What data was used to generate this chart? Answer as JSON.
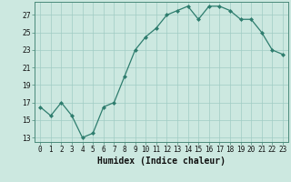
{
  "xlabel": "Humidex (Indice chaleur)",
  "x": [
    0,
    1,
    2,
    3,
    4,
    5,
    6,
    7,
    8,
    9,
    10,
    11,
    12,
    13,
    14,
    15,
    16,
    17,
    18,
    19,
    20,
    21,
    22,
    23
  ],
  "y": [
    16.5,
    15.5,
    17.0,
    15.5,
    13.0,
    13.5,
    16.5,
    17.0,
    20.0,
    23.0,
    24.5,
    25.5,
    27.0,
    27.5,
    28.0,
    26.5,
    28.0,
    28.0,
    27.5,
    26.5,
    26.5,
    25.0,
    23.0,
    22.5
  ],
  "ylim_min": 12.5,
  "ylim_max": 28.5,
  "yticks": [
    13,
    15,
    17,
    19,
    21,
    23,
    25,
    27
  ],
  "xticks": [
    0,
    1,
    2,
    3,
    4,
    5,
    6,
    7,
    8,
    9,
    10,
    11,
    12,
    13,
    14,
    15,
    16,
    17,
    18,
    19,
    20,
    21,
    22,
    23
  ],
  "line_color": "#2e7d6e",
  "marker_color": "#2e7d6e",
  "bg_color": "#cce8e0",
  "grid_color": "#a0ccc4",
  "xlabel_fontsize": 7.0,
  "tick_fontsize": 5.5,
  "marker_size": 2.0,
  "line_width": 0.9
}
